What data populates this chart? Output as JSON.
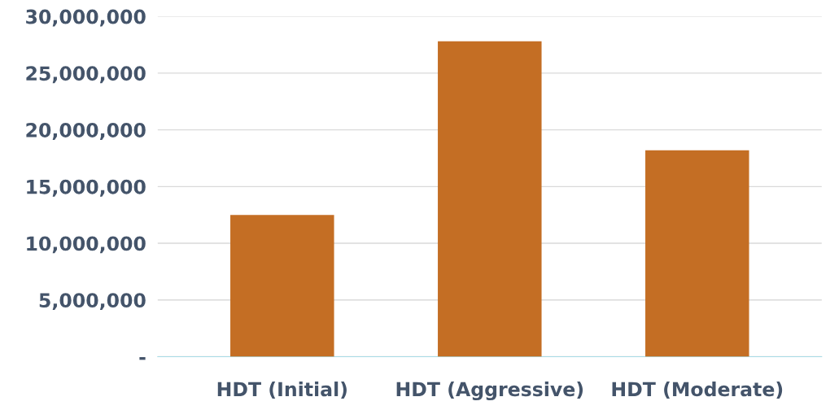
{
  "chart_data": {
    "type": "bar",
    "categories": [
      "HDT (Initial)",
      "HDT (Aggressive)",
      "HDT (Moderate)"
    ],
    "values": [
      12500000,
      27800000,
      18200000
    ],
    "color": "#c46e24",
    "ylim": [
      0,
      30000000
    ],
    "yticks": [
      {
        "value": 0,
        "label": "-"
      },
      {
        "value": 5000000,
        "label": "5,000,000"
      },
      {
        "value": 10000000,
        "label": "10,000,000"
      },
      {
        "value": 15000000,
        "label": "15,000,000"
      },
      {
        "value": 20000000,
        "label": "20,000,000"
      },
      {
        "value": 25000000,
        "label": "25,000,000"
      },
      {
        "value": 30000000,
        "label": "30,000,000"
      }
    ],
    "grid": "y",
    "legend": false
  }
}
